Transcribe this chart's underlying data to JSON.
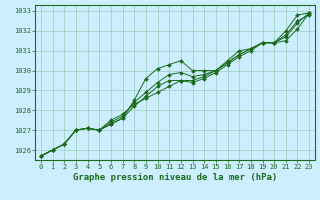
{
  "title": "Graphe pression niveau de la mer (hPa)",
  "bg_color": "#cceeff",
  "grid_color": "#99ccbb",
  "line_color": "#1a6b1a",
  "marker_color": "#1a6b1a",
  "xlim": [
    -0.5,
    23.5
  ],
  "ylim": [
    1025.5,
    1033.3
  ],
  "yticks": [
    1026,
    1027,
    1028,
    1029,
    1030,
    1031,
    1032,
    1033
  ],
  "xticks": [
    0,
    1,
    2,
    3,
    4,
    5,
    6,
    7,
    8,
    9,
    10,
    11,
    12,
    13,
    14,
    15,
    16,
    17,
    18,
    19,
    20,
    21,
    22,
    23
  ],
  "series": [
    [
      1025.7,
      1026.0,
      1026.3,
      1027.0,
      1027.1,
      1027.0,
      1027.3,
      1027.6,
      1028.5,
      1029.6,
      1030.1,
      1030.3,
      1030.5,
      1030.0,
      1030.0,
      1030.0,
      1030.5,
      1031.0,
      1031.1,
      1031.4,
      1031.4,
      1032.0,
      1032.8,
      1032.9
    ],
    [
      1025.7,
      1026.0,
      1026.3,
      1027.0,
      1027.1,
      1027.0,
      1027.5,
      1027.8,
      1028.3,
      1028.6,
      1028.9,
      1029.2,
      1029.5,
      1029.5,
      1029.7,
      1030.0,
      1030.4,
      1030.8,
      1031.1,
      1031.4,
      1031.4,
      1031.5,
      1032.1,
      1032.9
    ],
    [
      1025.7,
      1026.0,
      1026.3,
      1027.0,
      1027.1,
      1027.0,
      1027.4,
      1027.7,
      1028.4,
      1028.9,
      1029.4,
      1029.8,
      1029.9,
      1029.7,
      1029.8,
      1030.0,
      1030.4,
      1030.8,
      1031.1,
      1031.4,
      1031.4,
      1031.7,
      1032.4,
      1032.9
    ],
    [
      1025.7,
      1026.0,
      1026.3,
      1027.0,
      1027.1,
      1027.0,
      1027.3,
      1027.6,
      1028.2,
      1028.7,
      1029.2,
      1029.5,
      1029.5,
      1029.4,
      1029.6,
      1029.9,
      1030.3,
      1030.7,
      1031.0,
      1031.4,
      1031.4,
      1031.8,
      1032.5,
      1032.8
    ]
  ],
  "ylabel_fontsize": 5.0,
  "xlabel_fontsize": 5.0,
  "title_fontsize": 6.5
}
